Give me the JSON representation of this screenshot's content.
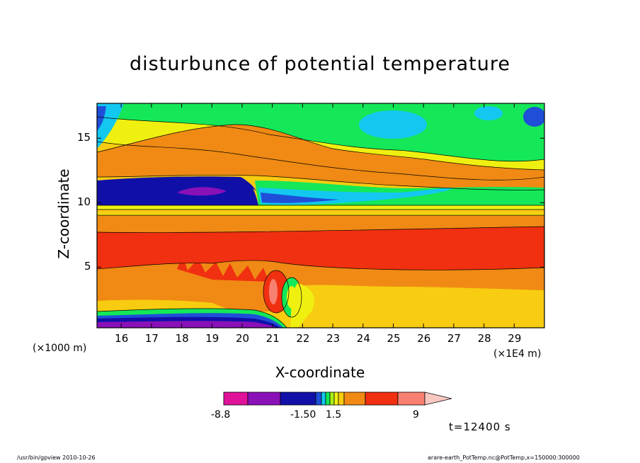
{
  "chart_data": {
    "type": "heatmap",
    "title": "disturbunce of potential temperature",
    "xlabel": "X-coordinate",
    "ylabel": "Z-coordinate",
    "x_unit_left": "(×1000 m)",
    "x_unit_right": "(×1E4 m)",
    "xlim": [
      15.2,
      30.0
    ],
    "ylim": [
      0.3,
      17.7
    ],
    "x_ticks": [
      "16",
      "17",
      "18",
      "19",
      "20",
      "21",
      "22",
      "23",
      "24",
      "25",
      "26",
      "27",
      "28",
      "29"
    ],
    "y_ticks": [
      "5",
      "10",
      "15"
    ],
    "colorbar": {
      "levels": [
        "-8.8",
        "-1.50",
        "1.5",
        "9"
      ],
      "colors": [
        "#e0129a",
        "#8a10b8",
        "#1010a8",
        "#1f4fd8",
        "#12c8f0",
        "#14e858",
        "#a8f018",
        "#f0f010",
        "#f8cc10",
        "#f08a14",
        "#f03010",
        "#f88070",
        "#f8c8c0"
      ]
    },
    "time_label": "t=12400 s",
    "footer_left": "/usr/bin/gpview   2010-10-26",
    "footer_right": "arare-earth_PotTemp.nc@PotTemp,x=150000:300000"
  }
}
